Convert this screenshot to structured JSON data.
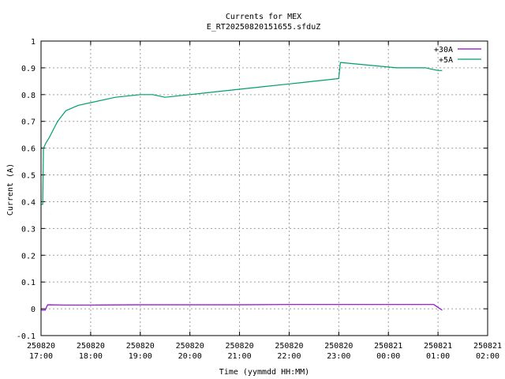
{
  "chart_data": {
    "type": "line",
    "title": "Currents for MEX",
    "subtitle": "E_RT20250820151655.sfduZ",
    "xlabel": "Time (yymmdd HH:MM)",
    "ylabel": "Current (A)",
    "xlim": [
      "2025-08-20 17:00",
      "2025-08-21 02:00"
    ],
    "ylim": [
      -0.1,
      1.0
    ],
    "grid": true,
    "legend_position": "top-right",
    "x_ticks": [
      {
        "date": "250820",
        "time": "17:00"
      },
      {
        "date": "250820",
        "time": "18:00"
      },
      {
        "date": "250820",
        "time": "19:00"
      },
      {
        "date": "250820",
        "time": "20:00"
      },
      {
        "date": "250820",
        "time": "21:00"
      },
      {
        "date": "250820",
        "time": "22:00"
      },
      {
        "date": "250820",
        "time": "23:00"
      },
      {
        "date": "250821",
        "time": "00:00"
      },
      {
        "date": "250821",
        "time": "01:00"
      },
      {
        "date": "250821",
        "time": "02:00"
      }
    ],
    "y_ticks": [
      "-0.1",
      "0",
      "0.1",
      "0.2",
      "0.3",
      "0.4",
      "0.5",
      "0.6",
      "0.7",
      "0.8",
      "0.9",
      "1"
    ],
    "series": [
      {
        "name": "+30A",
        "color": "#9400d3",
        "x": [
          "2025-08-20 17:00",
          "2025-08-20 17:05",
          "2025-08-20 17:08",
          "2025-08-20 17:30",
          "2025-08-20 18:00",
          "2025-08-20 19:00",
          "2025-08-20 20:00",
          "2025-08-20 21:00",
          "2025-08-20 22:00",
          "2025-08-20 23:00",
          "2025-08-21 00:00",
          "2025-08-21 00:55",
          "2025-08-21 01:00",
          "2025-08-21 01:05"
        ],
        "y": [
          -0.005,
          -0.005,
          0.015,
          0.014,
          0.014,
          0.015,
          0.015,
          0.015,
          0.016,
          0.016,
          0.016,
          0.016,
          0.005,
          -0.005
        ]
      },
      {
        "name": "+5A",
        "color": "#009e73",
        "x": [
          "2025-08-20 17:00",
          "2025-08-20 17:02",
          "2025-08-20 17:03",
          "2025-08-20 17:06",
          "2025-08-20 17:10",
          "2025-08-20 17:15",
          "2025-08-20 17:20",
          "2025-08-20 17:30",
          "2025-08-20 17:45",
          "2025-08-20 18:00",
          "2025-08-20 18:30",
          "2025-08-20 19:00",
          "2025-08-20 19:15",
          "2025-08-20 19:30",
          "2025-08-20 20:00",
          "2025-08-20 20:30",
          "2025-08-20 21:00",
          "2025-08-20 21:30",
          "2025-08-20 22:00",
          "2025-08-20 22:30",
          "2025-08-20 23:00",
          "2025-08-20 23:02",
          "2025-08-21 00:10",
          "2025-08-21 00:30",
          "2025-08-21 00:45",
          "2025-08-21 01:00",
          "2025-08-21 01:05"
        ],
        "y": [
          0.39,
          0.39,
          0.6,
          0.62,
          0.64,
          0.67,
          0.7,
          0.74,
          0.76,
          0.77,
          0.79,
          0.8,
          0.8,
          0.79,
          0.8,
          0.81,
          0.82,
          0.83,
          0.84,
          0.85,
          0.86,
          0.92,
          0.9,
          0.9,
          0.9,
          0.89,
          0.89
        ]
      }
    ]
  }
}
